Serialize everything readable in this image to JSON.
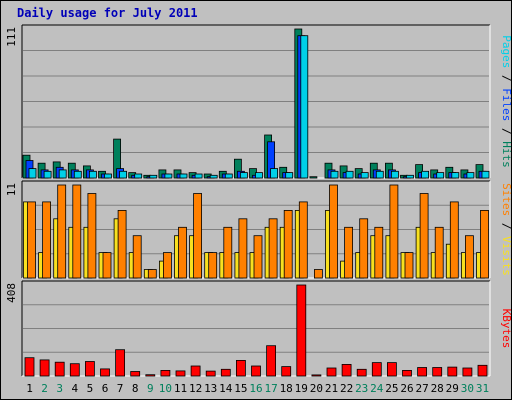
{
  "title": "Daily usage for July 2011",
  "colors": {
    "hits": "#00805c",
    "files": "#0040ff",
    "pages": "#00d0e8",
    "visits": "#f8e020",
    "sites": "#ff8000",
    "kbytes": "#ff0000"
  },
  "chart_data": {
    "type": "bar",
    "title": "Daily usage for July 2011",
    "categories": [
      "1",
      "2",
      "3",
      "4",
      "5",
      "6",
      "7",
      "8",
      "9",
      "10",
      "11",
      "12",
      "13",
      "14",
      "15",
      "16",
      "17",
      "18",
      "19",
      "20",
      "21",
      "22",
      "23",
      "24",
      "25",
      "26",
      "27",
      "28",
      "29",
      "30",
      "31"
    ],
    "weekend_days": [
      "2",
      "3",
      "9",
      "10",
      "16",
      "17",
      "23",
      "24",
      "30",
      "31"
    ],
    "panels": [
      {
        "name": "hits-files-pages",
        "ymax_label": "111",
        "ymax": 111,
        "legend": [
          "Pages",
          "Files",
          "Hits"
        ],
        "series": [
          {
            "name": "Hits",
            "color": "#00805c",
            "values": [
              17,
              11,
              12,
              11,
              9,
              5,
              29,
              4,
              2,
              6,
              6,
              4,
              3,
              5,
              14,
              7,
              32,
              8,
              111,
              1,
              11,
              9,
              7,
              11,
              11,
              2,
              10,
              6,
              8,
              6,
              10
            ]
          },
          {
            "name": "Files",
            "color": "#0040ff",
            "values": [
              13,
              6,
              8,
              6,
              6,
              3,
              7,
              2,
              1,
              3,
              3,
              2,
              1,
              3,
              5,
              2,
              27,
              4,
              106,
              0,
              6,
              4,
              3,
              6,
              6,
              1,
              4,
              3,
              4,
              3,
              5
            ]
          },
          {
            "name": "Pages",
            "color": "#00d0e8",
            "values": [
              7,
              5,
              6,
              5,
              5,
              3,
              5,
              3,
              2,
              3,
              3,
              3,
              2,
              3,
              4,
              4,
              7,
              4,
              106,
              0,
              5,
              5,
              4,
              5,
              5,
              2,
              5,
              4,
              4,
              4,
              5
            ]
          }
        ]
      },
      {
        "name": "visits-sites",
        "ymax_label": "11",
        "ymax": 11,
        "legend": [
          "Sites",
          "Visits"
        ],
        "series": [
          {
            "name": "Visits",
            "color": "#f8e020",
            "values": [
              9,
              3,
              7,
              6,
              6,
              3,
              7,
              3,
              1,
              2,
              5,
              5,
              3,
              3,
              3,
              3,
              6,
              6,
              8,
              0,
              8,
              2,
              3,
              5,
              5,
              3,
              6,
              3,
              4,
              3,
              3
            ]
          },
          {
            "name": "Sites",
            "color": "#ff8000",
            "values": [
              9,
              9,
              11,
              11,
              10,
              3,
              8,
              5,
              1,
              3,
              6,
              10,
              3,
              6,
              7,
              5,
              7,
              8,
              9,
              1,
              11,
              6,
              7,
              6,
              11,
              3,
              10,
              6,
              9,
              5,
              8
            ]
          }
        ]
      },
      {
        "name": "kbytes",
        "ymax_label": "408",
        "ymax": 408,
        "legend": [
          "KBytes"
        ],
        "series": [
          {
            "name": "KBytes",
            "color": "#ff0000",
            "values": [
              82,
              72,
              62,
              55,
              65,
              32,
              118,
              20,
              6,
              25,
              23,
              45,
              22,
              30,
              70,
              45,
              136,
              42,
              408,
              5,
              36,
              52,
              30,
              60,
              60,
              25,
              38,
              38,
              40,
              36,
              48
            ]
          }
        ]
      }
    ]
  }
}
